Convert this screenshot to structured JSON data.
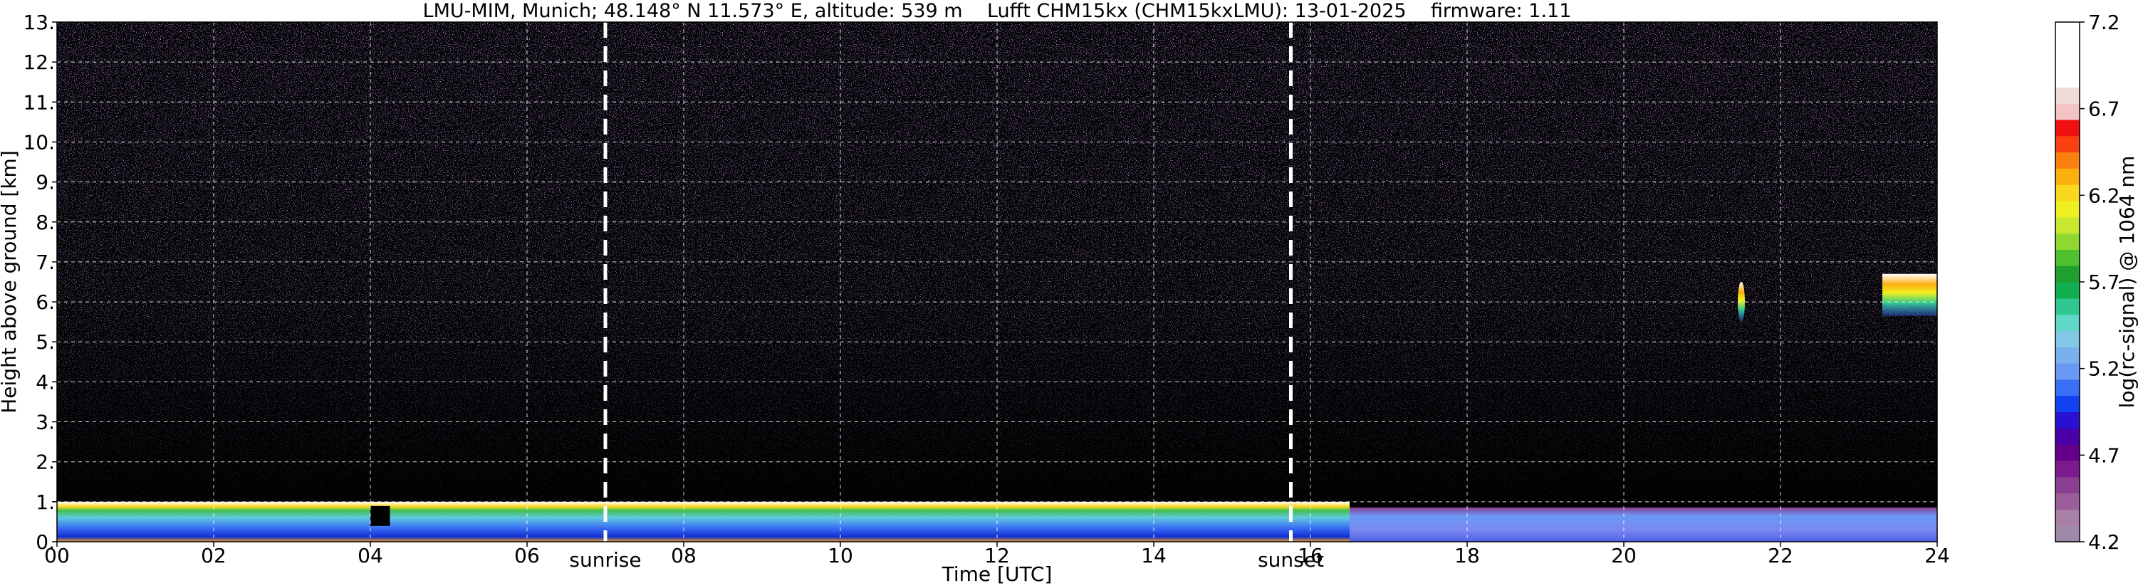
{
  "chart_data": {
    "type": "heatmap",
    "title": "LMU-MIM, Munich; 48.148° N 11.573° E, altitude: 539 m    Lufft CHM15kx (CHM15kxLMU): 13-01-2025    firmware: 1.11",
    "xlabel": "Time [UTC]",
    "ylabel": "Height above ground [km]",
    "xlim": [
      0,
      24
    ],
    "ylim": [
      0,
      13
    ],
    "x_ticks": [
      "00",
      "02",
      "04",
      "06",
      "08",
      "10",
      "12",
      "14",
      "16",
      "18",
      "20",
      "22",
      "24"
    ],
    "y_ticks": [
      "0.",
      "1.",
      "2.",
      "3.",
      "4.",
      "5.",
      "6.",
      "7.",
      "8.",
      "9.",
      "10.",
      "11.",
      "12.",
      "13."
    ],
    "grid": true,
    "vlines": [
      {
        "x": 7.0,
        "label": "sunrise"
      },
      {
        "x": 15.75,
        "label": "sunset"
      }
    ],
    "colorbar": {
      "label": "log(rc-signal) @ 1064 nm",
      "ticks": [
        "4.2",
        "4.7",
        "5.2",
        "5.7",
        "6.2",
        "6.7",
        "7.2"
      ],
      "range": [
        4.2,
        7.2
      ],
      "colors": [
        "#9e8aa8",
        "#a880a6",
        "#9a5f9b",
        "#8a3f93",
        "#7a1a8c",
        "#64008c",
        "#4a00a8",
        "#2a10d0",
        "#1040f0",
        "#3a70f5",
        "#6a98f5",
        "#7ab0ee",
        "#82c8e6",
        "#60d8c8",
        "#30c890",
        "#10b050",
        "#20a030",
        "#50c030",
        "#90d830",
        "#c8e830",
        "#f0f020",
        "#f8d820",
        "#fcb010",
        "#fc8010",
        "#f84010",
        "#f01010",
        "#f4c4c4",
        "#f0dada",
        "#ffffff",
        "#ffffff",
        "#ffffff",
        "#ffffff"
      ]
    },
    "features": [
      {
        "name": "boundary layer aerosol",
        "x": [
          0,
          24
        ],
        "y": [
          0.0,
          1.0
        ]
      },
      {
        "name": "cloud 21.5 UTC",
        "x": [
          21.5
        ],
        "y": [
          5.5,
          6.5
        ]
      },
      {
        "name": "cloud 23.3-24 UTC",
        "x": [
          23.3,
          24
        ],
        "y": [
          5.3,
          6.7
        ]
      }
    ]
  }
}
